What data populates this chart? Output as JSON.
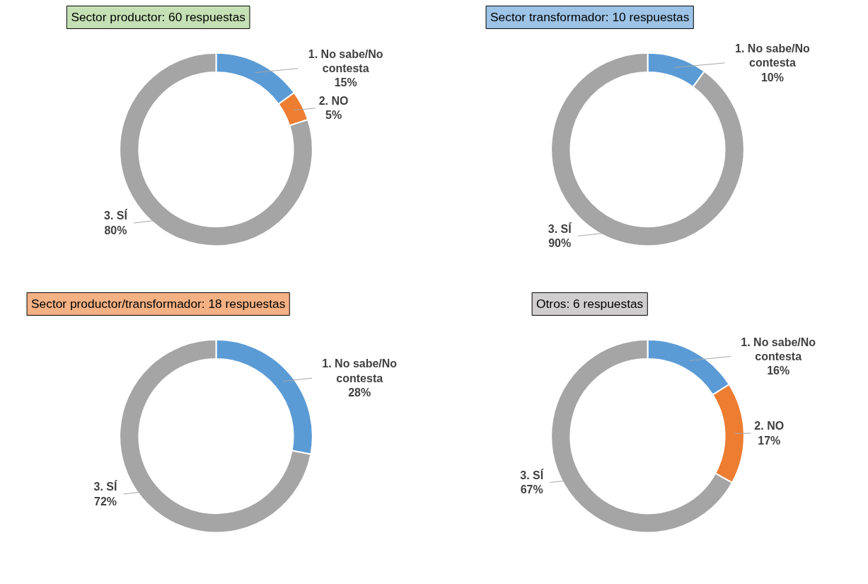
{
  "chart_data": [
    {
      "type": "donut",
      "title": "Sector productor: 60 respuestas",
      "categories": [
        "1. No sabe/No contesta",
        "2. NO",
        "3. SÍ"
      ],
      "values": [
        15,
        5,
        80
      ],
      "value_labels": [
        "15%",
        "5%",
        "80%"
      ],
      "colors": [
        "#5b9bd5",
        "#ed7d31",
        "#a5a5a5"
      ]
    },
    {
      "type": "donut",
      "title": "Sector transformador: 10 respuestas",
      "categories": [
        "1. No sabe/No contesta",
        "3. SÍ"
      ],
      "values": [
        10,
        90
      ],
      "value_labels": [
        "10%",
        "90%"
      ],
      "colors": [
        "#5b9bd5",
        "#a5a5a5"
      ]
    },
    {
      "type": "donut",
      "title": "Sector productor/transformador: 18 respuestas",
      "categories": [
        "1. No sabe/No contesta",
        "3. SÍ"
      ],
      "values": [
        28,
        72
      ],
      "value_labels": [
        "28%",
        "72%"
      ],
      "colors": [
        "#5b9bd5",
        "#a5a5a5"
      ]
    },
    {
      "type": "donut",
      "title": "Otros: 6 respuestas",
      "categories": [
        "1. No sabe/No contesta",
        "2. NO",
        "3. SÍ"
      ],
      "values": [
        16,
        17,
        67
      ],
      "value_labels": [
        "16%",
        "17%",
        "67%"
      ],
      "colors": [
        "#5b9bd5",
        "#ed7d31",
        "#a5a5a5"
      ]
    }
  ]
}
